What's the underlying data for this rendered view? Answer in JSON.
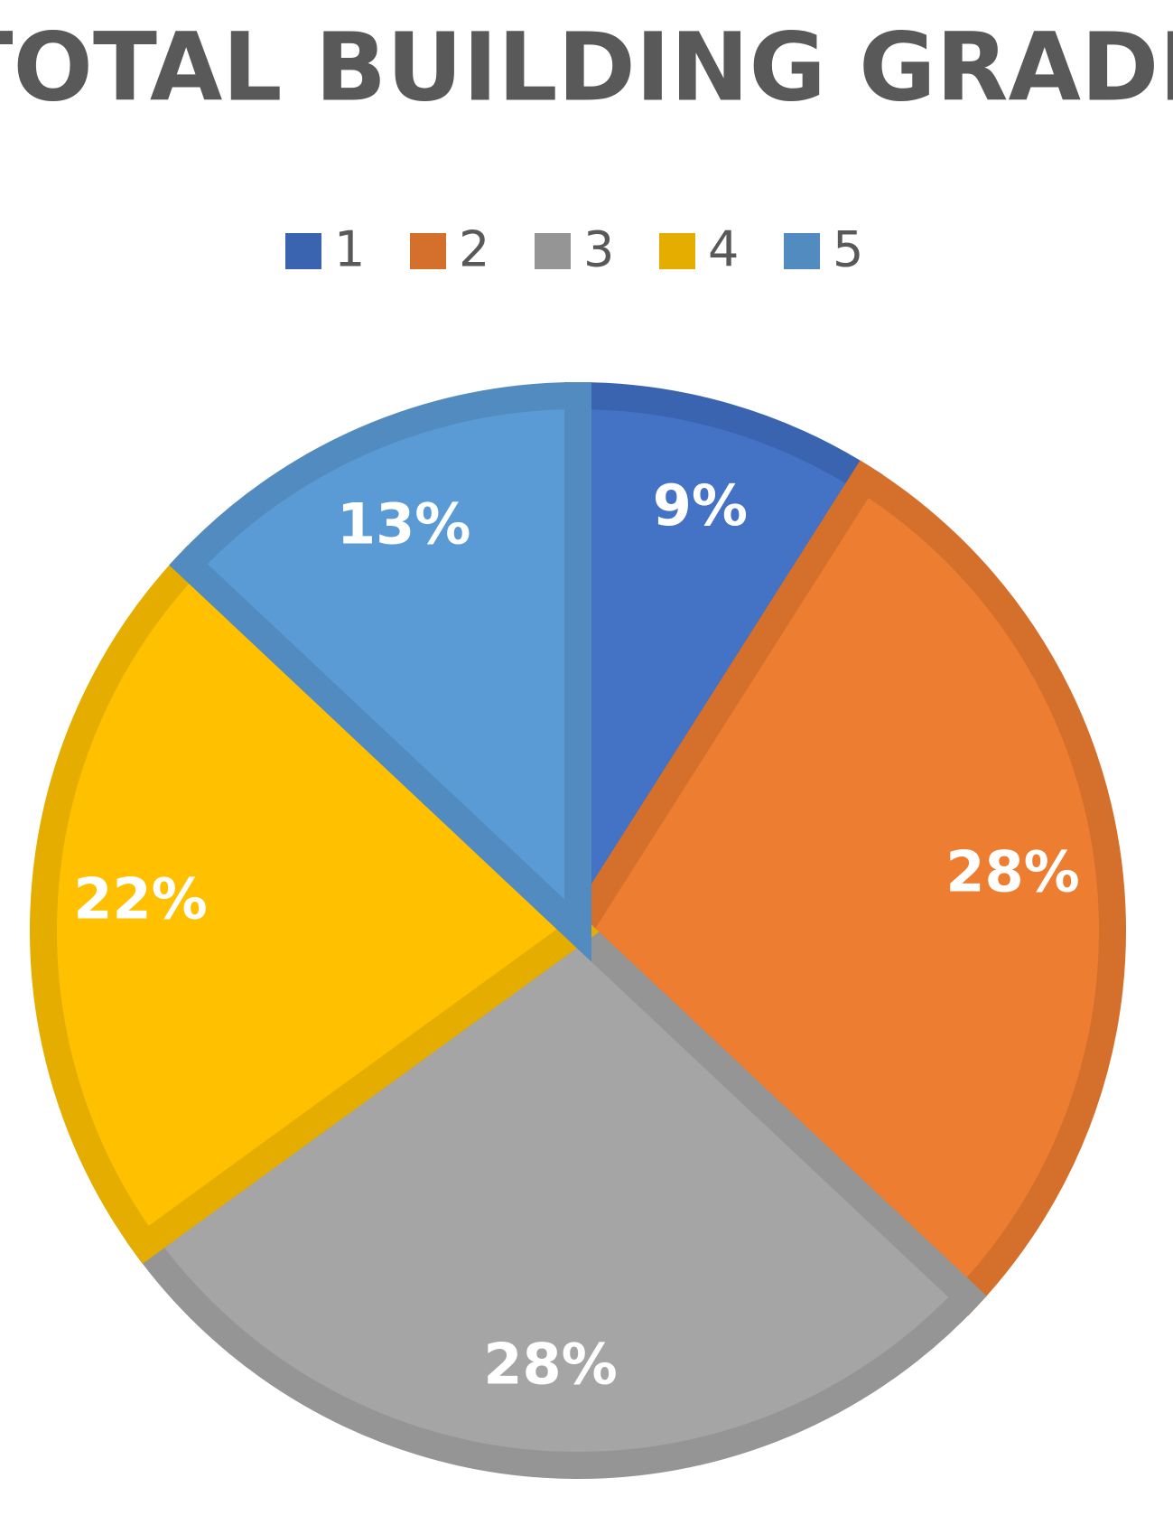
{
  "chart_data": {
    "type": "pie",
    "title": "TOTAL BUILDING GRADE",
    "categories": [
      "1",
      "2",
      "3",
      "4",
      "5"
    ],
    "values": [
      9,
      28,
      28,
      22,
      13
    ],
    "value_labels": [
      "9%",
      "28%",
      "28%",
      "22%",
      "13%"
    ],
    "colors": [
      "#4472c4",
      "#ed7d31",
      "#a5a5a5",
      "#ffc000",
      "#5b9bd5"
    ],
    "edge_colors": [
      "#3a63b0",
      "#d4702c",
      "#959595",
      "#e4ad00",
      "#518bbf"
    ],
    "legend": "top"
  }
}
